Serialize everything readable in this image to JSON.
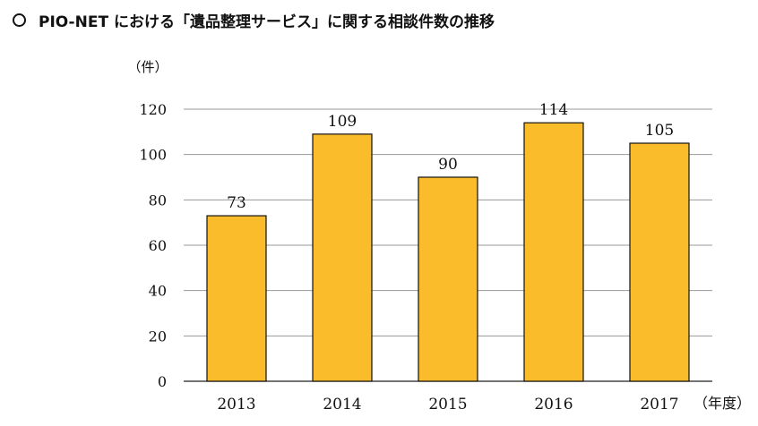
{
  "title": "PIO-NET における「遺品整理サービス」に関する相談件数の推移",
  "chart_data": {
    "type": "bar",
    "categories": [
      "2013",
      "2014",
      "2015",
      "2016",
      "2017"
    ],
    "values": [
      73,
      109,
      90,
      114,
      105
    ],
    "data_labels": [
      "73",
      "109",
      "90",
      "114",
      "105"
    ],
    "ylabel": "（件）",
    "xlabel": "（年度）",
    "ylim": [
      0,
      120
    ],
    "yticks": [
      0,
      20,
      40,
      60,
      80,
      100,
      120
    ],
    "grid": true,
    "bar_color": "#FBBC2C",
    "bar_edge": "#111111"
  }
}
